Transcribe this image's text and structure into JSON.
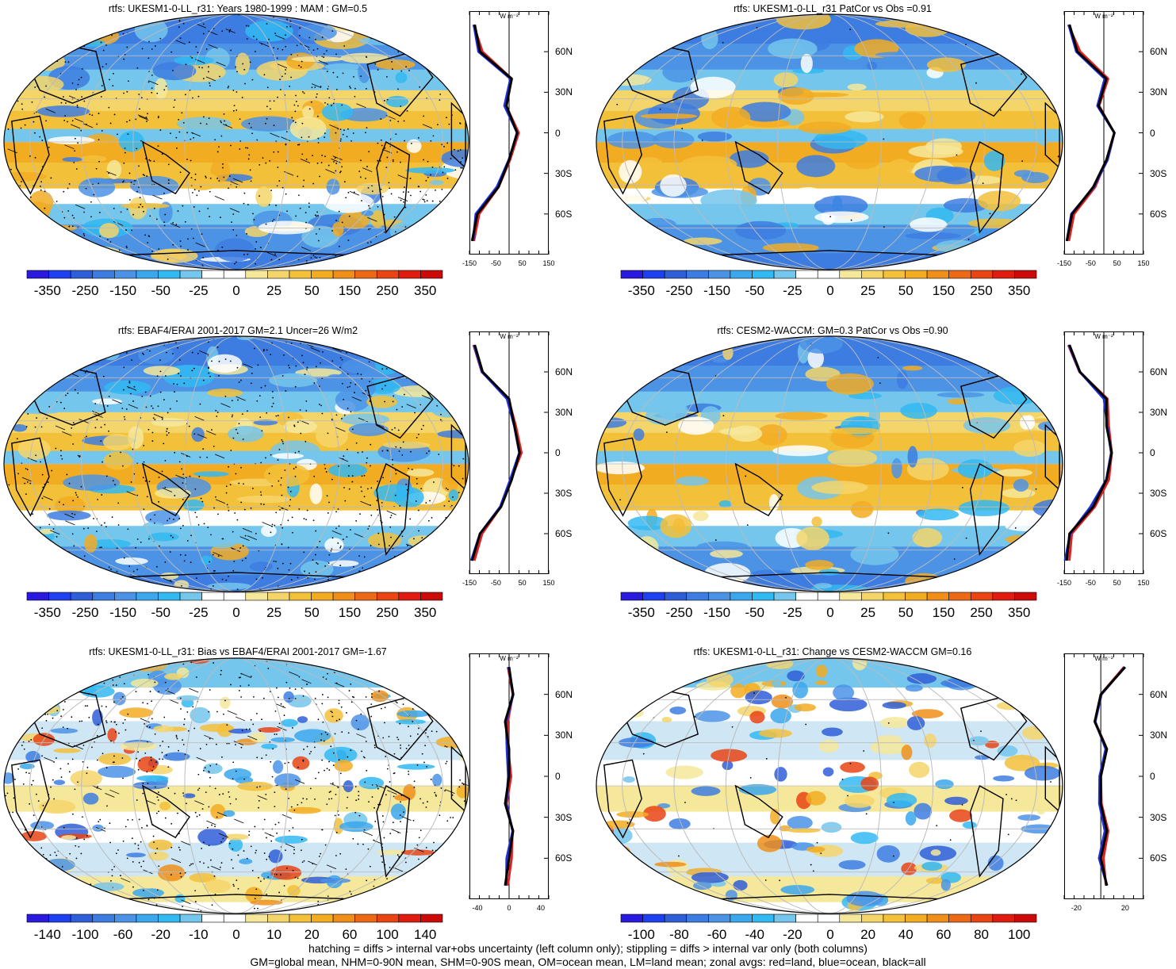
{
  "colors": {
    "land_line": "#e02020",
    "ocean_line": "#2030d8",
    "all_line": "#000000",
    "palette": [
      "#2a1ae0",
      "#1f40f0",
      "#2f5ed8",
      "#3d7ce0",
      "#4c93e6",
      "#3ba7ec",
      "#33b9f2",
      "#74c6ec",
      "#ffffff",
      "#ffffff",
      "#f6e89a",
      "#f4d56a",
      "#f3c03a",
      "#f2ac22",
      "#ef8f1a",
      "#ec6a16",
      "#e84414",
      "#e01c10",
      "#cc0a0a"
    ]
  },
  "panels": [
    {
      "id": "p1",
      "title": "rtfs: UKESM1-0-LL_r31: Years 1980-1999 : MAM : GM=0.5",
      "colorbar_labels": [
        "-350",
        "-250",
        "-150",
        "-50",
        "-25",
        "0",
        "25",
        "50",
        "150",
        "250",
        "350"
      ],
      "zonal_xticks": [
        "-150",
        "-50",
        "50",
        "150"
      ],
      "zonal_unit": "W m⁻²",
      "lat_labels": [
        "60N",
        "30N",
        "0",
        "30S",
        "60S"
      ]
    },
    {
      "id": "p2",
      "title": "rtfs: UKESM1-0-LL_r31 PatCor vs Obs =0.91",
      "colorbar_labels": [
        "-350",
        "-250",
        "-150",
        "-50",
        "-25",
        "0",
        "25",
        "50",
        "150",
        "250",
        "350"
      ],
      "zonal_xticks": [
        "-150",
        "-50",
        "50",
        "150"
      ],
      "zonal_unit": "W m⁻²",
      "lat_labels": [
        "60N",
        "30N",
        "0",
        "30S",
        "60S"
      ]
    },
    {
      "id": "p3",
      "title": "rtfs: EBAF4/ERAI 2001-2017 GM=2.1 Uncer=26 W/m2",
      "colorbar_labels": [
        "-350",
        "-250",
        "-150",
        "-50",
        "-25",
        "0",
        "25",
        "50",
        "150",
        "250",
        "350"
      ],
      "zonal_xticks": [
        "-150",
        "-50",
        "50",
        "150"
      ],
      "zonal_unit": "W m⁻²",
      "lat_labels": [
        "60N",
        "30N",
        "0",
        "30S",
        "60S"
      ]
    },
    {
      "id": "p4",
      "title": "rtfs: CESM2-WACCM: GM=0.3 PatCor vs Obs =0.90",
      "colorbar_labels": [
        "-350",
        "-250",
        "-150",
        "-50",
        "-25",
        "0",
        "25",
        "50",
        "150",
        "250",
        "350"
      ],
      "zonal_xticks": [
        "-150",
        "-50",
        "50",
        "150"
      ],
      "zonal_unit": "W m⁻²",
      "lat_labels": [
        "60N",
        "30N",
        "0",
        "30S",
        "60S"
      ]
    },
    {
      "id": "p5",
      "title": "rtfs: UKESM1-0-LL_r31: Bias vs EBAF4/ERAI 2001-2017 GM=-1.67",
      "colorbar_labels": [
        "-140",
        "-100",
        "-60",
        "-20",
        "-10",
        "0",
        "10",
        "20",
        "60",
        "100",
        "140"
      ],
      "zonal_xticks": [
        "-40",
        "0",
        "40"
      ],
      "zonal_unit": "W m⁻²",
      "lat_labels": [
        "60N",
        "30N",
        "0",
        "30S",
        "60S"
      ]
    },
    {
      "id": "p6",
      "title": "rtfs: UKESM1-0-LL_r31: Change vs CESM2-WACCM GM=0.16",
      "colorbar_labels": [
        "-100",
        "-80",
        "-60",
        "-40",
        "-20",
        "0",
        "20",
        "40",
        "60",
        "80",
        "100"
      ],
      "zonal_xticks": [
        "-20",
        "20"
      ],
      "zonal_unit": "W m⁻²",
      "lat_labels": [
        "60N",
        "30N",
        "0",
        "30S",
        "60S"
      ]
    }
  ],
  "footer": {
    "line1": "hatching = diffs > internal var+obs uncertainty (left column only); stippling = diffs > internal var only (both columns)",
    "line2": "GM=global mean, NHM=0-90N mean, SHM=0-90S mean, OM=ocean mean, LM=land mean; zonal avgs: red=land, blue=ocean, black=all"
  },
  "chart_data": [
    {
      "type": "heatmap",
      "title": "rtfs: UKESM1-0-LL_r31: Years 1980-1999 : MAM : GM=0.5",
      "colorbar_ticks": [
        -350,
        -250,
        -150,
        -50,
        -25,
        0,
        25,
        50,
        150,
        250,
        350
      ],
      "zonal_mean": {
        "xlim": [
          -150,
          150
        ],
        "lat": [
          80,
          60,
          40,
          20,
          0,
          -20,
          -40,
          -60,
          -80
        ],
        "all": [
          -130,
          -110,
          10,
          -10,
          30,
          0,
          -40,
          -120,
          -140
        ]
      }
    },
    {
      "type": "heatmap",
      "title": "rtfs: UKESM1-0-LL_r31 PatCor vs Obs =0.91",
      "colorbar_ticks": [
        -350,
        -250,
        -150,
        -50,
        -25,
        0,
        25,
        50,
        150,
        250,
        350
      ],
      "zonal_mean": {
        "xlim": [
          -150,
          150
        ],
        "lat": [
          80,
          60,
          40,
          20,
          0,
          -20,
          -40,
          -60,
          -80
        ],
        "all": [
          -130,
          -100,
          10,
          -20,
          40,
          10,
          -40,
          -120,
          -140
        ]
      }
    },
    {
      "type": "heatmap",
      "title": "rtfs: EBAF4/ERAI 2001-2017 GM=2.1 Uncer=26 W/m2",
      "colorbar_ticks": [
        -350,
        -250,
        -150,
        -50,
        -25,
        0,
        25,
        50,
        150,
        250,
        350
      ],
      "zonal_mean": {
        "xlim": [
          -150,
          150
        ],
        "lat": [
          80,
          60,
          40,
          20,
          0,
          -20,
          -40,
          -60,
          -80
        ],
        "all": [
          -130,
          -100,
          0,
          20,
          40,
          10,
          -30,
          -110,
          -140
        ]
      }
    },
    {
      "type": "heatmap",
      "title": "rtfs: CESM2-WACCM: GM=0.3 PatCor vs Obs =0.90",
      "colorbar_ticks": [
        -350,
        -250,
        -150,
        -50,
        -25,
        0,
        25,
        50,
        150,
        250,
        350
      ],
      "zonal_mean": {
        "xlim": [
          -150,
          150
        ],
        "lat": [
          80,
          60,
          40,
          20,
          0,
          -20,
          -40,
          -60,
          -80
        ],
        "all": [
          -130,
          -90,
          10,
          10,
          30,
          10,
          -40,
          -130,
          -140
        ]
      }
    },
    {
      "type": "heatmap",
      "title": "rtfs: UKESM1-0-LL_r31: Bias vs EBAF4/ERAI 2001-2017 GM=-1.67",
      "colorbar_ticks": [
        -140,
        -100,
        -60,
        -20,
        -10,
        0,
        10,
        20,
        60,
        100,
        140
      ],
      "zonal_mean": {
        "xlim": [
          -50,
          50
        ],
        "lat": [
          80,
          60,
          40,
          20,
          0,
          -20,
          -40,
          -60,
          -80
        ],
        "all": [
          0,
          5,
          -5,
          0,
          0,
          -5,
          5,
          0,
          -5
        ]
      }
    },
    {
      "type": "heatmap",
      "title": "rtfs: UKESM1-0-LL_r31: Change vs CESM2-WACCM GM=0.16",
      "colorbar_ticks": [
        -100,
        -80,
        -60,
        -40,
        -20,
        0,
        20,
        40,
        60,
        80,
        100
      ],
      "zonal_mean": {
        "xlim": [
          -30,
          35
        ],
        "lat": [
          80,
          60,
          40,
          20,
          0,
          -20,
          -40,
          -60,
          -80
        ],
        "all": [
          20,
          0,
          -5,
          5,
          0,
          0,
          5,
          0,
          5
        ]
      }
    }
  ]
}
